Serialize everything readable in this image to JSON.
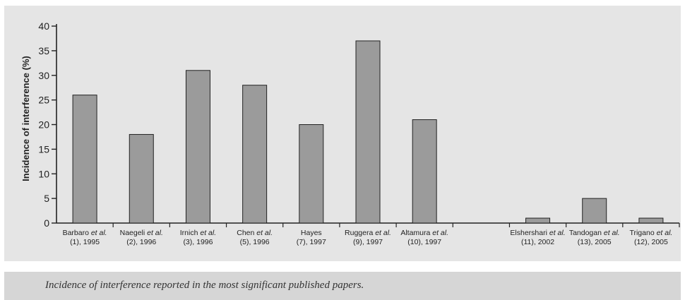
{
  "colors": {
    "panel": "#e5e5e5",
    "bar_fill": "#9b9b9b",
    "bar_stroke": "#222222",
    "caption_band": "#d6d6d6"
  },
  "chart_data": {
    "type": "bar",
    "ylabel": "Incidence of interference (%)",
    "ylim": [
      0,
      40
    ],
    "yticks": [
      0,
      5,
      10,
      15,
      20,
      25,
      30,
      35,
      40
    ],
    "grid": false,
    "categories": [
      {
        "author": "Barbaro",
        "etal": true,
        "ref": "(1), 1995"
      },
      {
        "author": "Naegeli",
        "etal": true,
        "ref": "(2), 1996"
      },
      {
        "author": "Irnich",
        "etal": true,
        "ref": "(3), 1996"
      },
      {
        "author": "Chen",
        "etal": true,
        "ref": "(5), 1996"
      },
      {
        "author": "Hayes",
        "etal": false,
        "ref": "(7), 1997"
      },
      {
        "author": "Ruggera",
        "etal": true,
        "ref": "(9), 1997"
      },
      {
        "author": "Altamura",
        "etal": true,
        "ref": "(10), 1997"
      },
      {
        "author": "",
        "etal": false,
        "ref": ""
      },
      {
        "author": "Elshershari",
        "etal": true,
        "ref": "(11), 2002"
      },
      {
        "author": "Tandogan",
        "etal": true,
        "ref": "(13), 2005"
      },
      {
        "author": "Trigano",
        "etal": true,
        "ref": "(12), 2005"
      }
    ],
    "values": [
      26,
      18,
      31,
      28,
      20,
      37,
      21,
      null,
      1,
      5,
      1
    ],
    "etal_text": "et al."
  },
  "caption": "Incidence of interference reported in the most significant published papers."
}
